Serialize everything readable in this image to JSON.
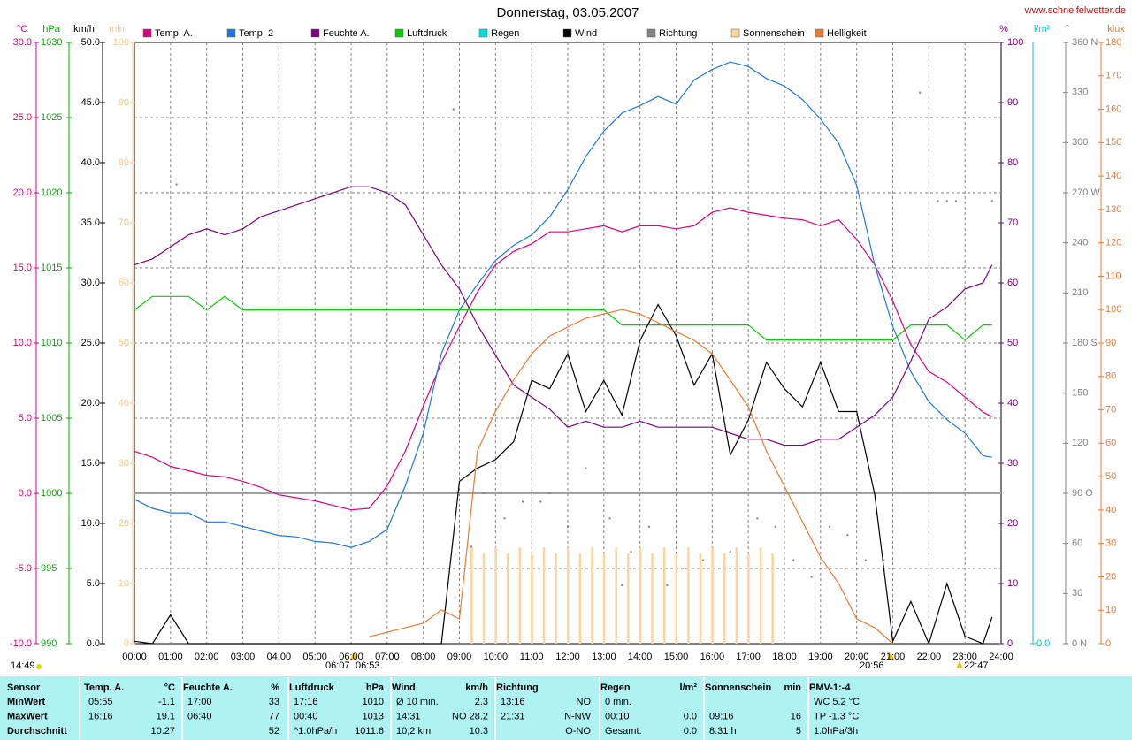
{
  "chart_data": {
    "type": "line",
    "title": "Donnerstag, 03.05.2007",
    "source": "www.schneifelwetter.de",
    "x": [
      "00:00",
      "00:30",
      "01:00",
      "01:30",
      "02:00",
      "02:30",
      "03:00",
      "03:30",
      "04:00",
      "04:30",
      "05:00",
      "05:30",
      "06:00",
      "06:30",
      "07:00",
      "07:30",
      "08:00",
      "08:30",
      "09:00",
      "09:30",
      "10:00",
      "10:30",
      "11:00",
      "11:30",
      "12:00",
      "12:30",
      "13:00",
      "13:30",
      "14:00",
      "14:30",
      "15:00",
      "15:30",
      "16:00",
      "16:30",
      "17:00",
      "17:30",
      "18:00",
      "18:30",
      "19:00",
      "19:30",
      "20:00",
      "20:30",
      "21:00",
      "21:30",
      "22:00",
      "22:30",
      "23:00",
      "23:30",
      "23:45"
    ],
    "xticks": [
      "00:00",
      "01:00",
      "02:00",
      "03:00",
      "04:00",
      "05:00",
      "06:00",
      "07:00",
      "08:00",
      "09:00",
      "10:00",
      "11:00",
      "12:00",
      "13:00",
      "14:00",
      "15:00",
      "16:00",
      "17:00",
      "18:00",
      "19:00",
      "20:00",
      "21:00",
      "22:00",
      "23:00",
      "24:00"
    ],
    "grid": true,
    "axes": [
      {
        "unit": "°C",
        "color": "#e0007f",
        "lim": [
          -10,
          30
        ],
        "ticks": [
          {
            "value": -10,
            "label": "-10.0"
          },
          {
            "value": -5,
            "label": "-5.0"
          },
          {
            "value": 0,
            "label": "0.0"
          },
          {
            "value": 5,
            "label": "5.0"
          },
          {
            "value": 10,
            "label": "10.0"
          },
          {
            "value": 15,
            "label": "15.0"
          },
          {
            "value": 20,
            "label": "20.0"
          },
          {
            "value": 25,
            "label": "25.0"
          },
          {
            "value": 30,
            "label": "30.0"
          }
        ]
      },
      {
        "unit": "hPa",
        "color": "#00b000",
        "lim": [
          990,
          1030
        ],
        "ticks": [
          990,
          995,
          1000,
          1005,
          1010,
          1015,
          1020,
          1025,
          1030
        ]
      },
      {
        "unit": "km/h",
        "color": "#000000",
        "lim": [
          0,
          50
        ],
        "ticks": [
          {
            "value": 0,
            "label": "0.0"
          },
          {
            "value": 5,
            "label": "5.0"
          },
          {
            "value": 10,
            "label": "10.0"
          },
          {
            "value": 15,
            "label": "15.0"
          },
          {
            "value": 20,
            "label": "20.0"
          },
          {
            "value": 25,
            "label": "25.0"
          },
          {
            "value": 30,
            "label": "30.0"
          },
          {
            "value": 35,
            "label": "35.0"
          },
          {
            "value": 40,
            "label": "40.0"
          },
          {
            "value": 45,
            "label": "45.0"
          },
          {
            "value": 50,
            "label": "50.0"
          }
        ]
      },
      {
        "unit": "min",
        "color": "#f5c88a",
        "lim": [
          0,
          100
        ],
        "ticks": [
          0,
          10,
          20,
          30,
          40,
          50,
          60,
          70,
          80,
          90,
          100
        ]
      },
      {
        "unit": "%",
        "color": "#800080",
        "lim": [
          0,
          100
        ],
        "ticks": [
          0,
          10,
          20,
          30,
          40,
          50,
          60,
          70,
          80,
          90,
          100
        ]
      },
      {
        "unit": "l/m²",
        "color": "#00c8c8",
        "ticks": [
          {
            "value": 0,
            "label": "0.0"
          }
        ]
      },
      {
        "unit": "°",
        "color": "#808080",
        "lim": [
          0,
          360
        ],
        "ticks": [
          {
            "value": 0,
            "label": "0 N"
          },
          30,
          60,
          {
            "value": 90,
            "label": "90 O"
          },
          120,
          150,
          {
            "value": 180,
            "label": "180 S"
          },
          210,
          240,
          {
            "value": 270,
            "label": "270 W"
          },
          300,
          330,
          {
            "value": 360,
            "label": "360 N"
          }
        ]
      },
      {
        "unit": "klux",
        "color": "#f07830",
        "lim": [
          0,
          180
        ],
        "ticks": [
          0,
          10,
          20,
          30,
          40,
          50,
          60,
          70,
          80,
          90,
          100,
          110,
          120,
          130,
          140,
          150,
          160,
          170,
          180
        ]
      }
    ],
    "series": [
      {
        "name": "Temp. A.",
        "color": "#e0007f",
        "axis": 0,
        "kind": "line",
        "values": [
          2.8,
          2.4,
          1.8,
          1.5,
          1.2,
          1.1,
          0.8,
          0.4,
          -0.1,
          -0.3,
          -0.5,
          -0.8,
          -1.1,
          -1.0,
          0.5,
          2.8,
          5.8,
          8.7,
          11.1,
          13.4,
          15.2,
          16.1,
          16.6,
          17.4,
          17.4,
          17.6,
          17.8,
          17.4,
          17.8,
          17.8,
          17.6,
          17.8,
          18.7,
          19.0,
          18.7,
          18.5,
          18.3,
          18.2,
          17.8,
          18.2,
          16.9,
          15.2,
          12.8,
          9.9,
          8.1,
          7.4,
          6.4,
          5.4,
          5.1
        ]
      },
      {
        "name": "Temp. 2",
        "color": "#1e78e0",
        "axis": 0,
        "kind": "line",
        "values": [
          -0.4,
          -1.0,
          -1.3,
          -1.3,
          -1.9,
          -1.9,
          -2.2,
          -2.5,
          -2.8,
          -2.9,
          -3.2,
          -3.3,
          -3.6,
          -3.2,
          -2.4,
          0.5,
          4.0,
          9.3,
          12.2,
          13.9,
          15.5,
          16.5,
          17.2,
          18.4,
          20.2,
          22.4,
          24.1,
          25.3,
          25.8,
          26.4,
          25.9,
          27.5,
          28.2,
          28.7,
          28.4,
          27.6,
          27.1,
          26.2,
          24.9,
          23.3,
          20.5,
          15.2,
          11.1,
          8.1,
          6.1,
          4.9,
          4.0,
          2.5,
          2.4
        ]
      },
      {
        "name": "Feuchte A.",
        "color": "#800080",
        "axis": 4,
        "kind": "line",
        "values": [
          63,
          64,
          66,
          68,
          69,
          68,
          69,
          71,
          72,
          73,
          74,
          75,
          76,
          76,
          75,
          73,
          68,
          63,
          59,
          53,
          48,
          43,
          41,
          39,
          36,
          37,
          36,
          36,
          37,
          36,
          36,
          36,
          36,
          35,
          34,
          34,
          33,
          33,
          34,
          34,
          36,
          38,
          41,
          47,
          54,
          56,
          59,
          60,
          63
        ]
      },
      {
        "name": "Luftdruck",
        "color": "#00d000",
        "axis": 1,
        "kind": "line",
        "values": [
          1012.2,
          1013.1,
          1013.1,
          1013.1,
          1012.2,
          1013.1,
          1012.2,
          1012.2,
          1012.2,
          1012.2,
          1012.2,
          1012.2,
          1012.2,
          1012.2,
          1012.2,
          1012.2,
          1012.2,
          1012.2,
          1012.2,
          1012.2,
          1012.2,
          1012.2,
          1012.2,
          1012.2,
          1012.2,
          1012.2,
          1012.2,
          1011.2,
          1011.2,
          1011.2,
          1011.2,
          1011.2,
          1011.2,
          1011.2,
          1011.2,
          1010.2,
          1010.2,
          1010.2,
          1010.2,
          1010.2,
          1010.2,
          1010.2,
          1010.2,
          1011.2,
          1011.2,
          1011.2,
          1010.2,
          1011.2,
          1011.2
        ]
      },
      {
        "name": "Regen",
        "color": "#00e0e0",
        "axis": 5,
        "kind": "line"
      },
      {
        "name": "Wind",
        "color": "#000000",
        "axis": 2,
        "kind": "line",
        "values": [
          0.2,
          0,
          2.4,
          0,
          0,
          0,
          0,
          0,
          0,
          0,
          0,
          0,
          0,
          0,
          0,
          0,
          0,
          0,
          13.5,
          14.6,
          15.3,
          16.8,
          21.9,
          21.2,
          24.1,
          19.3,
          21.9,
          19.0,
          25.2,
          28.2,
          25.6,
          21.5,
          24.1,
          15.7,
          18.6,
          23.4,
          21.2,
          19.7,
          23.4,
          19.3,
          19.3,
          12.4,
          0.2,
          3.5,
          0,
          5.0,
          0.6,
          0,
          2.2
        ]
      },
      {
        "name": "Richtung",
        "color": "#808080",
        "axis": 6,
        "kind": "scatter",
        "x": [
          "01:10",
          "08:50",
          "09:20",
          "09:40",
          "10:15",
          "10:45",
          "11:15",
          "11:30",
          "12:00",
          "12:30",
          "13:10",
          "13:30",
          "13:45",
          "14:15",
          "14:45",
          "15:15",
          "15:45",
          "16:30",
          "17:15",
          "17:45",
          "18:15",
          "18:45",
          "19:15",
          "19:45",
          "20:15",
          "20:45",
          "21:45",
          "22:15",
          "22:30",
          "22:45",
          "23:45"
        ],
        "values": [
          275,
          320,
          58,
          90,
          75,
          85,
          85,
          90,
          70,
          105,
          75,
          35,
          55,
          70,
          35,
          45,
          50,
          55,
          75,
          70,
          50,
          40,
          70,
          65,
          50,
          50,
          330,
          265,
          265,
          265,
          265
        ]
      },
      {
        "name": "Sonnenschein",
        "color": "#ffd49a",
        "axis": 3,
        "kind": "bar",
        "x": [
          "09:20",
          "09:40",
          "10:00",
          "10:20",
          "10:40",
          "11:00",
          "11:20",
          "11:40",
          "12:00",
          "12:20",
          "12:40",
          "13:00",
          "13:20",
          "13:40",
          "14:00",
          "14:20",
          "14:40",
          "15:00",
          "15:20",
          "15:40",
          "16:00",
          "16:20",
          "16:40",
          "17:00",
          "17:20",
          "17:40"
        ],
        "values": [
          16,
          15,
          16,
          15,
          16,
          15,
          16,
          15,
          16,
          15,
          16,
          15,
          16,
          15,
          16,
          15,
          16,
          15,
          16,
          15,
          16,
          15,
          16,
          15,
          16,
          15
        ]
      },
      {
        "name": "Helligkeit",
        "color": "#f07830",
        "axis": 7,
        "kind": "line",
        "values": [
          null,
          null,
          null,
          null,
          null,
          null,
          null,
          null,
          null,
          null,
          null,
          null,
          null,
          2.1,
          3.4,
          4.8,
          6.1,
          10.1,
          7.4,
          57.7,
          69.6,
          78.9,
          86.8,
          92.1,
          94.8,
          97.4,
          98.7,
          100,
          98.7,
          96.1,
          93.4,
          90.8,
          86.8,
          78.9,
          70.9,
          57.7,
          47.1,
          36.5,
          25.9,
          18.0,
          7.4,
          4.8,
          0,
          null,
          null,
          null,
          null,
          null,
          null
        ]
      }
    ],
    "annotations": [
      "14:49",
      "06:07",
      "06:53",
      "20:56",
      "22:47"
    ]
  },
  "table": {
    "header": [
      {
        "l": "Sensor"
      },
      {
        "l": "Temp. A.",
        "r": "°C"
      },
      {
        "l": "Feuchte A.",
        "r": "%"
      },
      {
        "l": "Luftdruck",
        "r": "hPa"
      },
      {
        "l": "Wind",
        "r": "km/h"
      },
      {
        "l": "Richtung"
      },
      {
        "l": "Regen",
        "r": "l/m²"
      },
      {
        "l": "Sonnenschein",
        "r": "min"
      },
      {
        "l": "PMV-1:-4"
      }
    ],
    "rows": [
      {
        "label": "MinWert",
        "cells": [
          {
            "l": "05:55",
            "r": "-1.1"
          },
          {
            "l": "17:00",
            "r": "33"
          },
          {
            "l": "17:16",
            "r": "1010"
          },
          {
            "l": "Ø 10 min.",
            "r": "2.3"
          },
          {
            "l": "13:16",
            "r": "NO"
          },
          {
            "l": "0 min."
          },
          {},
          {
            "l": "WC 5.2 °C"
          }
        ]
      },
      {
        "label": "MaxWert",
        "cells": [
          {
            "l": "16:16",
            "r": "19.1"
          },
          {
            "l": "06:40",
            "r": "77"
          },
          {
            "l": "00:40",
            "r": "1013"
          },
          {
            "l": "14:31",
            "r": "NO 28.2"
          },
          {
            "l": "21:31",
            "r": "N-NW"
          },
          {
            "l": "00:10",
            "r": "0.0"
          },
          {
            "l": "09:16",
            "r": "16"
          },
          {
            "l": "TP -1.3 °C"
          }
        ]
      },
      {
        "label": "Durchschnitt",
        "cells": [
          {
            "r": "10.27"
          },
          {
            "r": "52"
          },
          {
            "l": "^1.0hPa/h",
            "r": "1011.6"
          },
          {
            "l": "10,2 km",
            "r": "10.3"
          },
          {
            "r": "O-NO"
          },
          {
            "l": "Gesamt:",
            "r": "0.0"
          },
          {
            "l": "8:31 h",
            "r": "5"
          },
          {
            "l": "1.0hPa/3h"
          }
        ]
      }
    ]
  }
}
